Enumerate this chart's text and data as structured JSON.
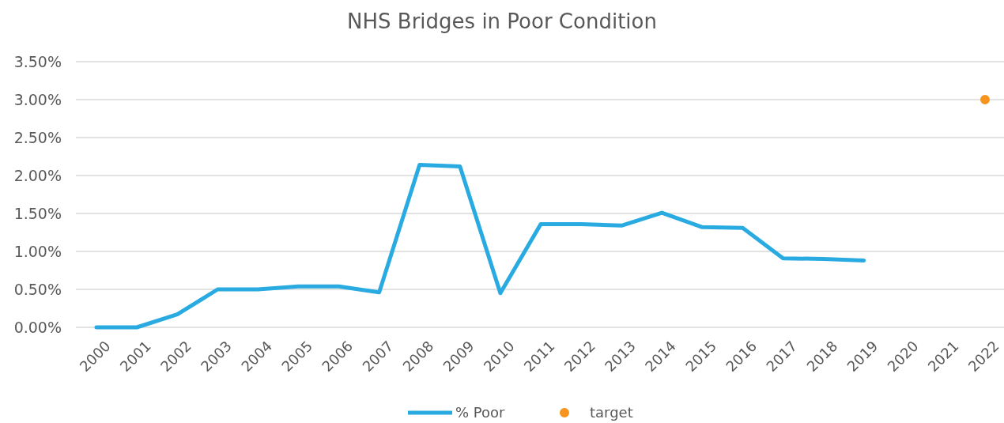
{
  "chart_data": {
    "type": "line",
    "title": "NHS Bridges in Poor Condition",
    "categories": [
      "2000",
      "2001",
      "2002",
      "2003",
      "2004",
      "2005",
      "2006",
      "2007",
      "2008",
      "2009",
      "2010",
      "2011",
      "2012",
      "2013",
      "2014",
      "2015",
      "2016",
      "2017",
      "2018",
      "2019",
      "2020",
      "2021",
      "2022"
    ],
    "series": [
      {
        "name": "% Poor",
        "color": "#29abe2",
        "values": [
          0,
          0,
          0.17,
          0.5,
          0.5,
          0.54,
          0.54,
          0.46,
          2.14,
          2.12,
          0.45,
          1.36,
          1.36,
          1.34,
          1.51,
          1.32,
          1.31,
          0.91,
          0.9,
          0.88,
          null,
          null,
          null
        ]
      },
      {
        "name": "target",
        "type": "scatter",
        "color": "#f7941d",
        "marker": "circle",
        "values": [
          null,
          null,
          null,
          null,
          null,
          null,
          null,
          null,
          null,
          null,
          null,
          null,
          null,
          null,
          null,
          null,
          null,
          null,
          null,
          null,
          null,
          null,
          3
        ]
      }
    ],
    "ylim": [
      0,
      3.5
    ],
    "yticks": [
      {
        "value": 0,
        "label": "0.00%"
      },
      {
        "value": 0.5,
        "label": "0.50%"
      },
      {
        "value": 1,
        "label": "1.00%"
      },
      {
        "value": 1.5,
        "label": "1.50%"
      },
      {
        "value": 2,
        "label": "2.00%"
      },
      {
        "value": 2.5,
        "label": "2.50%"
      },
      {
        "value": 3,
        "label": "3.00%"
      },
      {
        "value": 3.5,
        "label": "3.50%"
      }
    ],
    "grid": "y",
    "legend": "bottom"
  }
}
